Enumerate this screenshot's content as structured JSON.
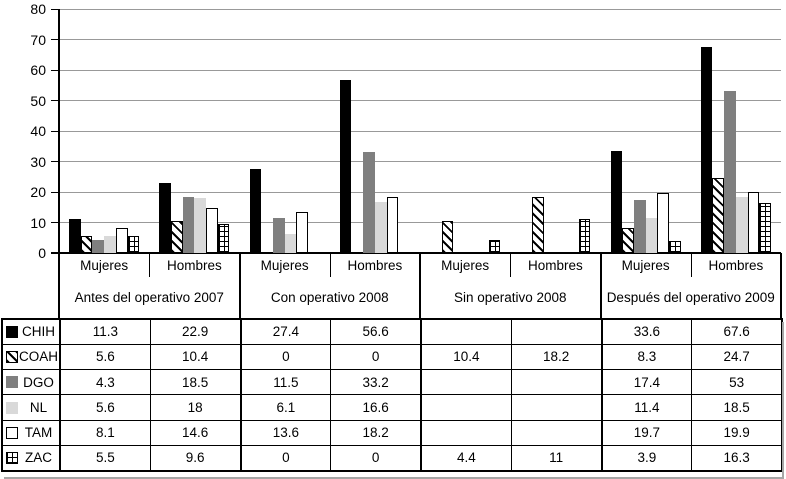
{
  "chart_data": {
    "type": "bar",
    "title": "",
    "xlabel": "",
    "ylabel": "",
    "ylim": [
      0,
      80
    ],
    "yticks": [
      0,
      10,
      20,
      30,
      40,
      50,
      60,
      70,
      80
    ],
    "grid": "horizontal",
    "legend_position": "left column of data table",
    "colors": {
      "background": "#ffffff",
      "axis": "#000000",
      "gridline": "#999999"
    },
    "groups": [
      {
        "label": "Antes del operativo 2007",
        "categories": [
          "Mujeres",
          "Hombres"
        ]
      },
      {
        "label": "Con operativo 2008",
        "categories": [
          "Mujeres",
          "Hombres"
        ]
      },
      {
        "label": "Sin operativo 2008",
        "categories": [
          "Mujeres",
          "Hombres"
        ]
      },
      {
        "label": "Después del operativo 2009",
        "categories": [
          "Mujeres",
          "Hombres"
        ]
      }
    ],
    "series": [
      {
        "name": "CHIH",
        "color": "#000000",
        "pattern": "solid-black",
        "values": [
          11.3,
          22.9,
          27.4,
          56.6,
          null,
          null,
          33.6,
          67.6
        ]
      },
      {
        "name": "COAH",
        "color": "#ffffff",
        "pattern": "diagonal-stripes",
        "values": [
          5.6,
          10.4,
          0,
          0,
          10.4,
          18.2,
          8.3,
          24.7
        ]
      },
      {
        "name": "DGO",
        "color": "#7f7f7f",
        "pattern": "solid-gray",
        "values": [
          4.3,
          18.5,
          11.5,
          33.2,
          null,
          null,
          17.4,
          53
        ]
      },
      {
        "name": "NL",
        "color": "#d9d9d9",
        "pattern": "solid-lightgray",
        "values": [
          5.6,
          18,
          6.1,
          16.6,
          null,
          null,
          11.4,
          18.5
        ]
      },
      {
        "name": "TAM",
        "color": "#ffffff",
        "pattern": "solid-white",
        "values": [
          8.1,
          14.6,
          13.6,
          18.2,
          null,
          null,
          19.7,
          19.9
        ]
      },
      {
        "name": "ZAC",
        "color": "#ffffff",
        "pattern": "grid-crosshatch",
        "values": [
          5.5,
          9.6,
          0,
          0,
          4.4,
          11,
          3.9,
          16.3
        ]
      }
    ]
  }
}
